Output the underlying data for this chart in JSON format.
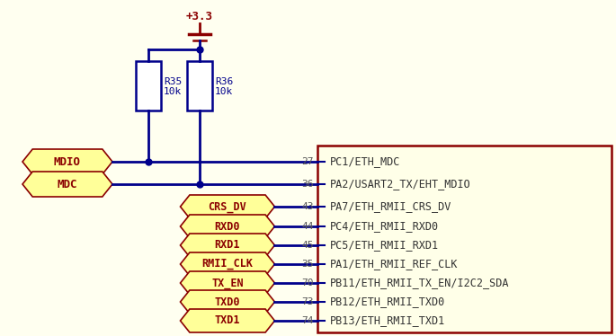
{
  "bg_color": "#FFFFF0",
  "wire_color": "#00008B",
  "text_color_dark": "#8B0000",
  "pin_box_fill": "#FFFF99",
  "ic_box_fill": "#FFFFE8",
  "ic_box_edge": "#8B0000",
  "power_color": "#8B0000",
  "res_label_color": "#00008B",
  "ic_text_color": "#333333",
  "pin_num_color": "#555555",
  "vcc_label": "+3.3",
  "ic_labels": [
    "PC1/ETH_MDC",
    "PA2/USART2_TX/EHT_MDIO",
    "PA7/ETH_RMII_CRS_DV",
    "PC4/ETH_RMII_RXD0",
    "PC5/ETH_RMII_RXD1",
    "PA1/ETH_RMII_REF_CLK",
    "PB11/ETH_RMII_TX_EN/I2C2_SDA",
    "PB12/ETH_RMII_TXD0",
    "PB13/ETH_RMII_TXD1"
  ],
  "pin_numbers": [
    "27",
    "36",
    "43",
    "44",
    "45",
    "35",
    "70",
    "73",
    "74"
  ],
  "left_pin_labels": [
    "MDIO",
    "MDC"
  ],
  "signal_pin_labels": [
    "CRS_DV",
    "RXD0",
    "RXD1",
    "RMII_CLK",
    "TX_EN",
    "TXD0",
    "TXD1"
  ]
}
